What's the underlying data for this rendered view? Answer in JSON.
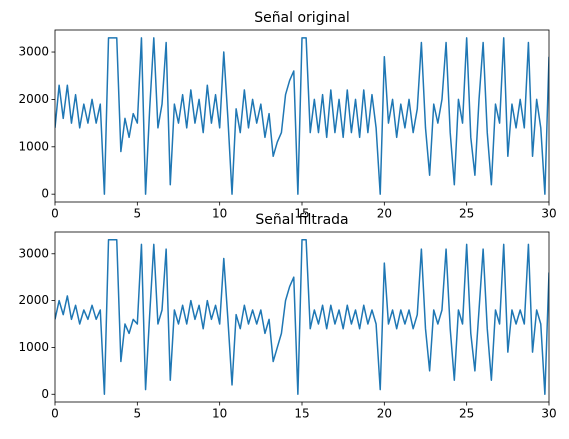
{
  "chart_data": [
    {
      "type": "line",
      "title": "Señal original",
      "color": "#1f77b4",
      "x": [
        0,
        0.25,
        0.5,
        0.75,
        1,
        1.25,
        1.5,
        1.75,
        2,
        2.25,
        2.5,
        2.75,
        3,
        3.25,
        3.5,
        3.75,
        4,
        4.25,
        4.5,
        4.75,
        5,
        5.25,
        5.5,
        5.75,
        6,
        6.25,
        6.5,
        6.75,
        7,
        7.25,
        7.5,
        7.75,
        8,
        8.25,
        8.5,
        8.75,
        9,
        9.25,
        9.5,
        9.75,
        10,
        10.25,
        10.5,
        10.75,
        11,
        11.25,
        11.5,
        11.75,
        12,
        12.25,
        12.5,
        12.75,
        13,
        13.25,
        13.5,
        13.75,
        14,
        14.25,
        14.5,
        14.75,
        15,
        15.25,
        15.5,
        15.75,
        16,
        16.25,
        16.5,
        16.75,
        17,
        17.25,
        17.5,
        17.75,
        18,
        18.25,
        18.5,
        18.75,
        19,
        19.25,
        19.5,
        19.75,
        20,
        20.25,
        20.5,
        20.75,
        21,
        21.25,
        21.5,
        21.75,
        22,
        22.25,
        22.5,
        22.75,
        23,
        23.25,
        23.5,
        23.75,
        24,
        24.25,
        24.5,
        24.75,
        25,
        25.25,
        25.5,
        25.75,
        26,
        26.25,
        26.5,
        26.75,
        27,
        27.25,
        27.5,
        27.75,
        28,
        28.25,
        28.5,
        28.75,
        29,
        29.25,
        29.5,
        29.75,
        30
      ],
      "values": [
        1400,
        2300,
        1600,
        2300,
        1500,
        2100,
        1400,
        1900,
        1500,
        2000,
        1500,
        1900,
        0,
        3300,
        3300,
        3300,
        900,
        1600,
        1200,
        1700,
        1500,
        3300,
        0,
        1800,
        3300,
        1400,
        1900,
        3200,
        200,
        1900,
        1500,
        2100,
        1400,
        2200,
        1500,
        2000,
        1300,
        2300,
        1500,
        2100,
        1400,
        3000,
        1600,
        0,
        1800,
        1300,
        2200,
        1400,
        2000,
        1500,
        1900,
        1200,
        1700,
        800,
        1100,
        1300,
        2100,
        2400,
        2600,
        0,
        3300,
        3300,
        1300,
        2000,
        1300,
        2100,
        1200,
        2200,
        1300,
        2000,
        1200,
        2200,
        1300,
        2000,
        1200,
        2200,
        1300,
        2100,
        1400,
        0,
        2900,
        1500,
        2000,
        1200,
        1900,
        1400,
        2000,
        1300,
        1800,
        3200,
        1400,
        400,
        1900,
        1500,
        2000,
        3200,
        1300,
        200,
        2000,
        1500,
        3300,
        1200,
        400,
        2000,
        3200,
        1300,
        200,
        1900,
        1500,
        3300,
        800,
        1900,
        1400,
        2000,
        1400,
        3200,
        800,
        2000,
        1400,
        0,
        2900
      ],
      "xlim": [
        0,
        30
      ],
      "ylim": [
        -165,
        3465
      ],
      "xticks": [
        0,
        5,
        10,
        15,
        20,
        25,
        30
      ],
      "yticks": [
        0,
        1000,
        2000,
        3000
      ]
    },
    {
      "type": "line",
      "title": "Señal filtrada",
      "color": "#1f77b4",
      "x": [
        0,
        0.25,
        0.5,
        0.75,
        1,
        1.25,
        1.5,
        1.75,
        2,
        2.25,
        2.5,
        2.75,
        3,
        3.25,
        3.5,
        3.75,
        4,
        4.25,
        4.5,
        4.75,
        5,
        5.25,
        5.5,
        5.75,
        6,
        6.25,
        6.5,
        6.75,
        7,
        7.25,
        7.5,
        7.75,
        8,
        8.25,
        8.5,
        8.75,
        9,
        9.25,
        9.5,
        9.75,
        10,
        10.25,
        10.5,
        10.75,
        11,
        11.25,
        11.5,
        11.75,
        12,
        12.25,
        12.5,
        12.75,
        13,
        13.25,
        13.5,
        13.75,
        14,
        14.25,
        14.5,
        14.75,
        15,
        15.25,
        15.5,
        15.75,
        16,
        16.25,
        16.5,
        16.75,
        17,
        17.25,
        17.5,
        17.75,
        18,
        18.25,
        18.5,
        18.75,
        19,
        19.25,
        19.5,
        19.75,
        20,
        20.25,
        20.5,
        20.75,
        21,
        21.25,
        21.5,
        21.75,
        22,
        22.25,
        22.5,
        22.75,
        23,
        23.25,
        23.5,
        23.75,
        24,
        24.25,
        24.5,
        24.75,
        25,
        25.25,
        25.5,
        25.75,
        26,
        26.25,
        26.5,
        26.75,
        27,
        27.25,
        27.5,
        27.75,
        28,
        28.25,
        28.5,
        28.75,
        29,
        29.25,
        29.5,
        29.75,
        30
      ],
      "values": [
        1600,
        2000,
        1700,
        2100,
        1600,
        1900,
        1500,
        1800,
        1600,
        1900,
        1600,
        1800,
        0,
        3300,
        3300,
        3300,
        700,
        1500,
        1300,
        1600,
        1500,
        3200,
        100,
        1700,
        3200,
        1500,
        1800,
        3100,
        300,
        1800,
        1500,
        1900,
        1500,
        2000,
        1600,
        1900,
        1400,
        2000,
        1600,
        1900,
        1500,
        2900,
        1600,
        200,
        1700,
        1400,
        1900,
        1500,
        1800,
        1500,
        1800,
        1300,
        1600,
        700,
        1000,
        1300,
        2000,
        2300,
        2500,
        0,
        3300,
        3300,
        1400,
        1800,
        1500,
        1900,
        1400,
        1900,
        1500,
        1800,
        1400,
        1900,
        1500,
        1800,
        1400,
        1900,
        1500,
        1800,
        1500,
        100,
        2800,
        1500,
        1800,
        1400,
        1800,
        1500,
        1800,
        1400,
        1700,
        3100,
        1400,
        500,
        1800,
        1500,
        1800,
        3100,
        1400,
        300,
        1800,
        1500,
        3200,
        1300,
        500,
        1800,
        3100,
        1400,
        300,
        1800,
        1500,
        3200,
        900,
        1800,
        1500,
        1800,
        1500,
        3200,
        900,
        1800,
        1500,
        0,
        2600
      ],
      "xlim": [
        0,
        30
      ],
      "ylim": [
        -165,
        3465
      ],
      "xticks": [
        0,
        5,
        10,
        15,
        20,
        25,
        30
      ],
      "yticks": [
        0,
        1000,
        2000,
        3000
      ]
    }
  ]
}
